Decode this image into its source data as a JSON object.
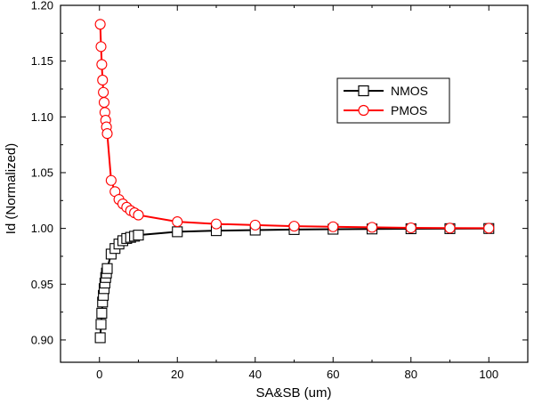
{
  "chart_data": {
    "type": "line",
    "title": "",
    "xlabel": "SA&SB (um)",
    "ylabel": "Id (Normalized)",
    "xlim": [
      -10,
      110
    ],
    "ylim": [
      0.88,
      1.2
    ],
    "xticks": [
      0,
      20,
      40,
      60,
      80,
      100
    ],
    "xtick_labels": [
      "0",
      "20",
      "40",
      "60",
      "80",
      "100"
    ],
    "yticks": [
      0.9,
      0.95,
      1.0,
      1.05,
      1.1,
      1.15,
      1.2
    ],
    "ytick_labels": [
      "0.90",
      "0.95",
      "1.00",
      "1.05",
      "1.10",
      "1.15",
      "1.20"
    ],
    "grid": false,
    "legend_position": "top-right",
    "series": [
      {
        "name": "NMOS",
        "color": "#000000",
        "marker": "open-square",
        "x": [
          0.2,
          0.4,
          0.6,
          0.8,
          1.0,
          1.2,
          1.4,
          1.6,
          1.8,
          2.0,
          3,
          4,
          5,
          6,
          7,
          8,
          9,
          10,
          20,
          30,
          40,
          50,
          60,
          70,
          80,
          90,
          100
        ],
        "y": [
          0.902,
          0.914,
          0.924,
          0.934,
          0.94,
          0.946,
          0.951,
          0.956,
          0.96,
          0.964,
          0.977,
          0.982,
          0.986,
          0.989,
          0.991,
          0.992,
          0.993,
          0.994,
          0.997,
          0.998,
          0.9985,
          0.999,
          0.9993,
          0.9995,
          0.9997,
          0.9998,
          0.9999
        ]
      },
      {
        "name": "PMOS",
        "color": "#ff0000",
        "marker": "open-circle",
        "x": [
          0.2,
          0.4,
          0.6,
          0.8,
          1.0,
          1.2,
          1.4,
          1.6,
          1.8,
          2.0,
          3,
          4,
          5,
          6,
          7,
          8,
          9,
          10,
          20,
          30,
          40,
          50,
          60,
          70,
          80,
          90,
          100
        ],
        "y": [
          1.183,
          1.163,
          1.147,
          1.133,
          1.122,
          1.113,
          1.104,
          1.097,
          1.091,
          1.085,
          1.043,
          1.033,
          1.026,
          1.022,
          1.019,
          1.016,
          1.014,
          1.012,
          1.006,
          1.004,
          1.003,
          1.002,
          1.0015,
          1.001,
          1.0005,
          1.0003,
          1.0002
        ]
      }
    ]
  }
}
